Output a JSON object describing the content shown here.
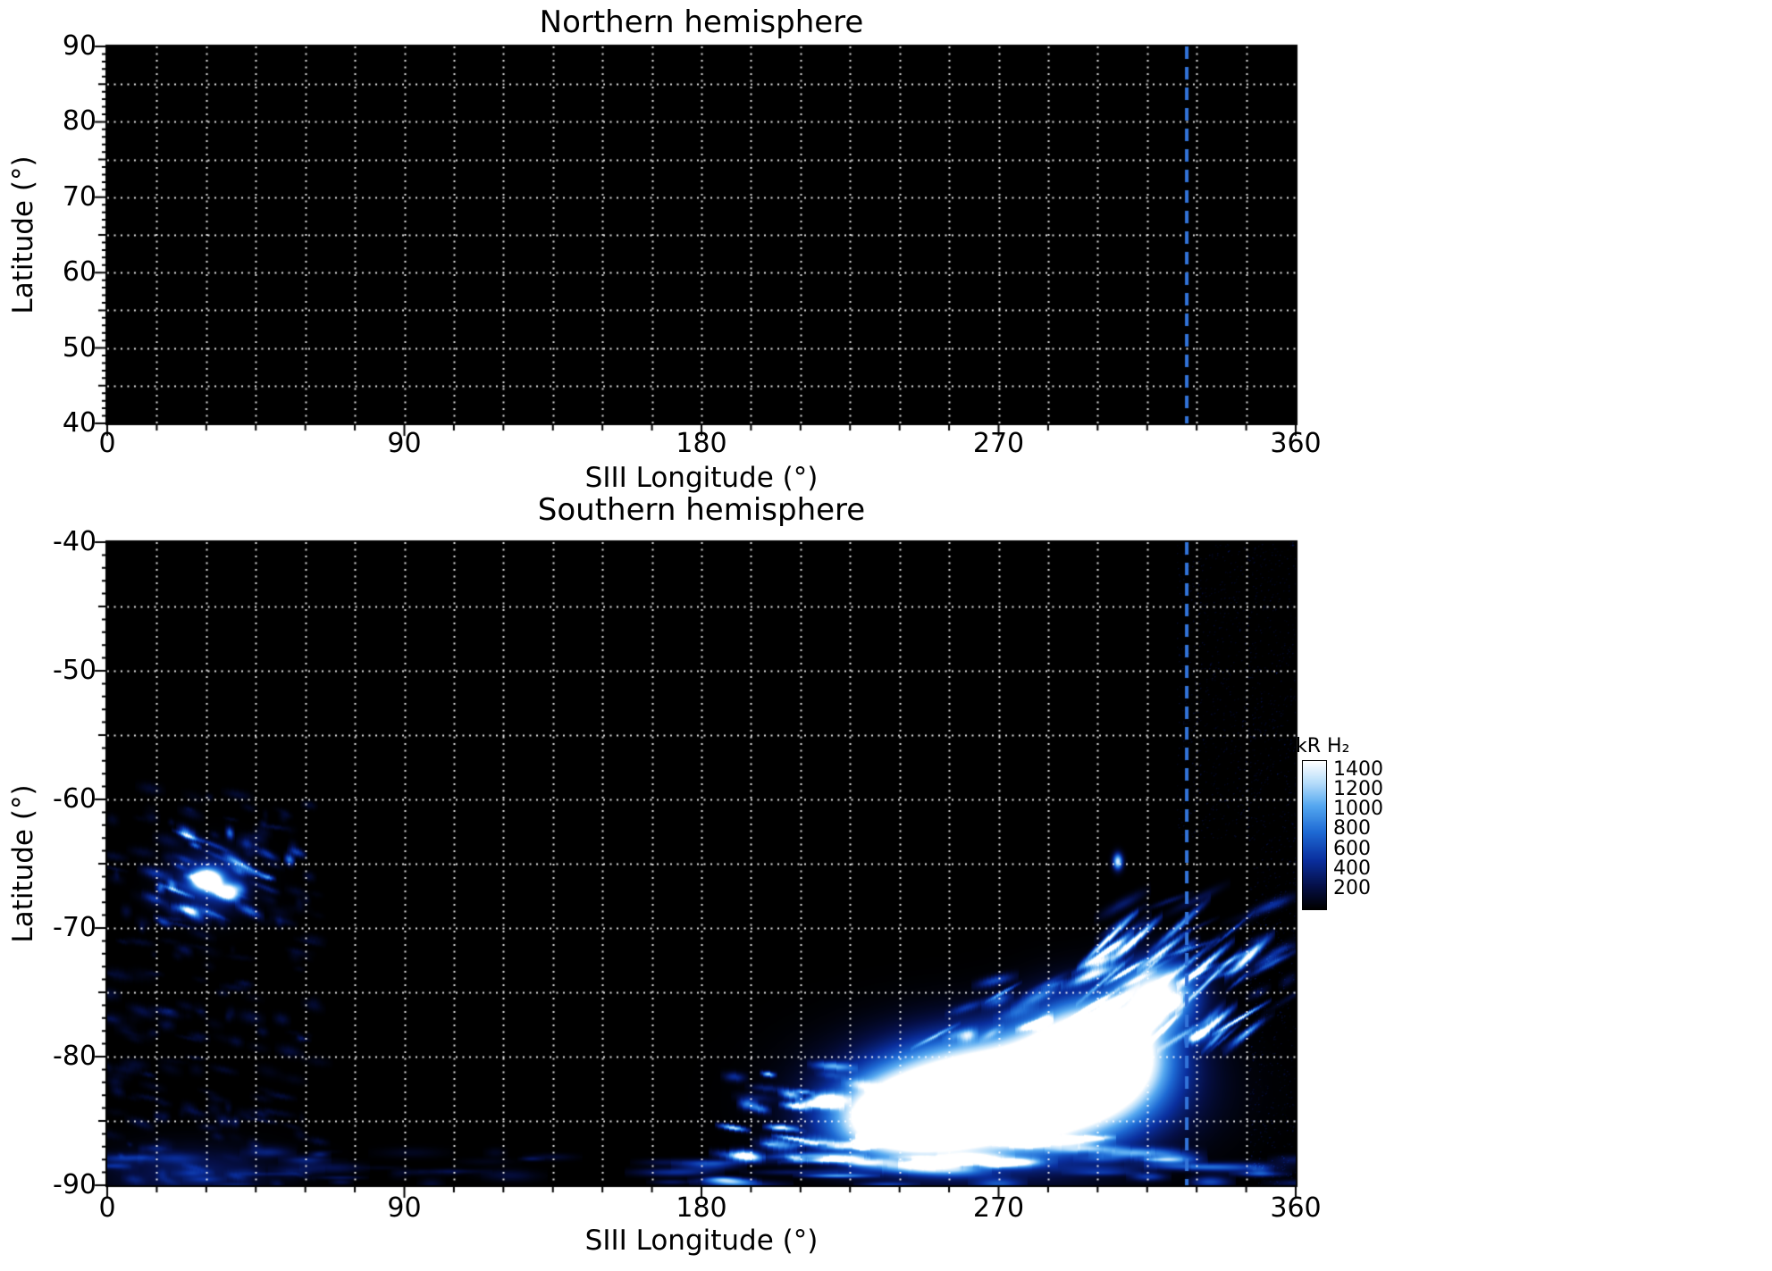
{
  "figure": {
    "background": "#ffffff",
    "text_color": "#000000"
  },
  "chart_data": [
    {
      "id": "north",
      "type": "heatmap",
      "title": "Northern hemisphere",
      "xlabel": "SIII Longitude (°)",
      "ylabel": "Latitude (°)",
      "xlim": [
        0,
        360
      ],
      "ylim": [
        40,
        90
      ],
      "x_ticks": [
        0,
        90,
        180,
        270,
        360
      ],
      "y_ticks": [
        40,
        50,
        60,
        70,
        80,
        90
      ],
      "grid": {
        "x_step_deg": 15,
        "y_step_deg": 5,
        "color": "#ffffff",
        "style": "dotted"
      },
      "background_color": "#000000",
      "marker_line": {
        "longitude": 327,
        "color": "#3274d9",
        "style": "dashed"
      },
      "features": []
    },
    {
      "id": "south",
      "type": "heatmap",
      "title": "Southern hemisphere",
      "xlabel": "SIII Longitude (°)",
      "ylabel": "Latitude (°)",
      "xlim": [
        0,
        360
      ],
      "ylim": [
        -90,
        -40
      ],
      "x_ticks": [
        0,
        90,
        180,
        270,
        360
      ],
      "y_ticks": [
        -90,
        -80,
        -70,
        -60,
        -50,
        -40
      ],
      "grid": {
        "x_step_deg": 15,
        "y_step_deg": 5,
        "color": "#ffffff",
        "style": "dotted"
      },
      "background_color": "#000000",
      "marker_line": {
        "longitude": 327,
        "color": "#3274d9",
        "style": "dashed"
      },
      "colorbar": {
        "label": "kR H₂",
        "units": "kR",
        "ticks": [
          200,
          400,
          600,
          800,
          1000,
          1200,
          1400
        ],
        "vmin": 0,
        "vmax": 1500
      },
      "colormap": {
        "stops": [
          {
            "t": 0.0,
            "color": "#000000"
          },
          {
            "t": 0.15,
            "color": "#050f46"
          },
          {
            "t": 0.33,
            "color": "#0a2f9e"
          },
          {
            "t": 0.52,
            "color": "#1e6ad4"
          },
          {
            "t": 0.7,
            "color": "#55a8f0"
          },
          {
            "t": 0.85,
            "color": "#b4dcfa"
          },
          {
            "t": 1.0,
            "color": "#ffffff"
          }
        ]
      },
      "features": [
        {
          "kind": "streaks",
          "lon": [
            0,
            64
          ],
          "lat": [
            -59,
            -90
          ],
          "count": 220,
          "peak": [
            40,
            200
          ],
          "len": [
            2,
            10
          ],
          "tilt": -0.05
        },
        {
          "kind": "glow",
          "lon": 25,
          "lat": -89,
          "rlon": 26,
          "rlat": 2.2,
          "peak": 300
        },
        {
          "kind": "glow",
          "lon": 31,
          "lat": -66.4,
          "rlon": 12,
          "rlat": 2.4,
          "peak": 600
        },
        {
          "kind": "streaks",
          "lon": [
            14,
            58
          ],
          "lat": [
            -62.5,
            -70
          ],
          "count": 44,
          "peak": [
            120,
            900
          ],
          "len": [
            3,
            12
          ],
          "tilt": -0.08
        },
        {
          "kind": "glow",
          "lon": 30,
          "lat": -66.2,
          "rlon": 4.5,
          "rlat": 0.8,
          "peak": 2200
        },
        {
          "kind": "glow",
          "lon": 37,
          "lat": -67.1,
          "rlon": 4,
          "rlat": 0.7,
          "peak": 1300
        },
        {
          "kind": "streaks",
          "lon": [
            0,
            140
          ],
          "lat": [
            -87,
            -90
          ],
          "count": 34,
          "peak": [
            60,
            320
          ],
          "len": [
            6,
            26
          ],
          "tilt": 0
        },
        {
          "kind": "glow",
          "lon": 272,
          "lat": -83,
          "rlon": 40,
          "rlat": 4.6,
          "peak": 3000
        },
        {
          "kind": "glow",
          "lon": 300,
          "lat": -79.5,
          "rlon": 22,
          "rlat": 4.2,
          "peak": 2400
        },
        {
          "kind": "glow",
          "lon": 242,
          "lat": -85,
          "rlon": 24,
          "rlat": 3.2,
          "peak": 2000
        },
        {
          "kind": "glow",
          "lon": 318,
          "lat": -75,
          "rlon": 13,
          "rlat": 2.8,
          "peak": 1500
        },
        {
          "kind": "streaks",
          "lon": [
            188,
            248
          ],
          "lat": [
            -80.5,
            -88
          ],
          "count": 34,
          "peak": [
            250,
            1400
          ],
          "len": [
            5,
            16
          ],
          "tilt": -0.03
        },
        {
          "kind": "streaks",
          "lon": [
            295,
            347
          ],
          "lat": [
            -69.5,
            -79
          ],
          "count": 40,
          "peak": [
            400,
            1600
          ],
          "len": [
            7,
            20
          ],
          "tilt": 0.17
        },
        {
          "kind": "streaks",
          "lon": [
            250,
            316
          ],
          "lat": [
            -74,
            -79
          ],
          "count": 20,
          "peak": [
            300,
            1100
          ],
          "len": [
            6,
            16
          ],
          "tilt": 0.1
        },
        {
          "kind": "streaks",
          "lon": [
            210,
            330
          ],
          "lat": [
            -86,
            -88.5
          ],
          "count": 20,
          "peak": [
            400,
            1300
          ],
          "len": [
            10,
            30
          ],
          "tilt": 0.01
        },
        {
          "kind": "streaks",
          "lon": [
            165,
            360
          ],
          "lat": [
            -87.5,
            -90
          ],
          "count": 44,
          "peak": [
            200,
            700
          ],
          "len": [
            8,
            34
          ],
          "tilt": 0
        },
        {
          "kind": "glow",
          "lon": 306,
          "lat": -64.8,
          "rlon": 1.6,
          "rlat": 0.7,
          "peak": 1400
        },
        {
          "kind": "streaks",
          "lon": [
            303,
            360
          ],
          "lat": [
            -67.5,
            -76
          ],
          "count": 26,
          "peak": [
            120,
            520
          ],
          "len": [
            5,
            22
          ],
          "tilt": 0.12
        },
        {
          "kind": "noise",
          "lon": [
            324,
            360
          ],
          "lat": [
            -40,
            -63
          ],
          "count": 1100,
          "peak": [
            30,
            150
          ]
        },
        {
          "kind": "noise",
          "lon": [
            346,
            360
          ],
          "lat": [
            -63,
            -90
          ],
          "count": 500,
          "peak": [
            30,
            160
          ]
        }
      ]
    }
  ]
}
